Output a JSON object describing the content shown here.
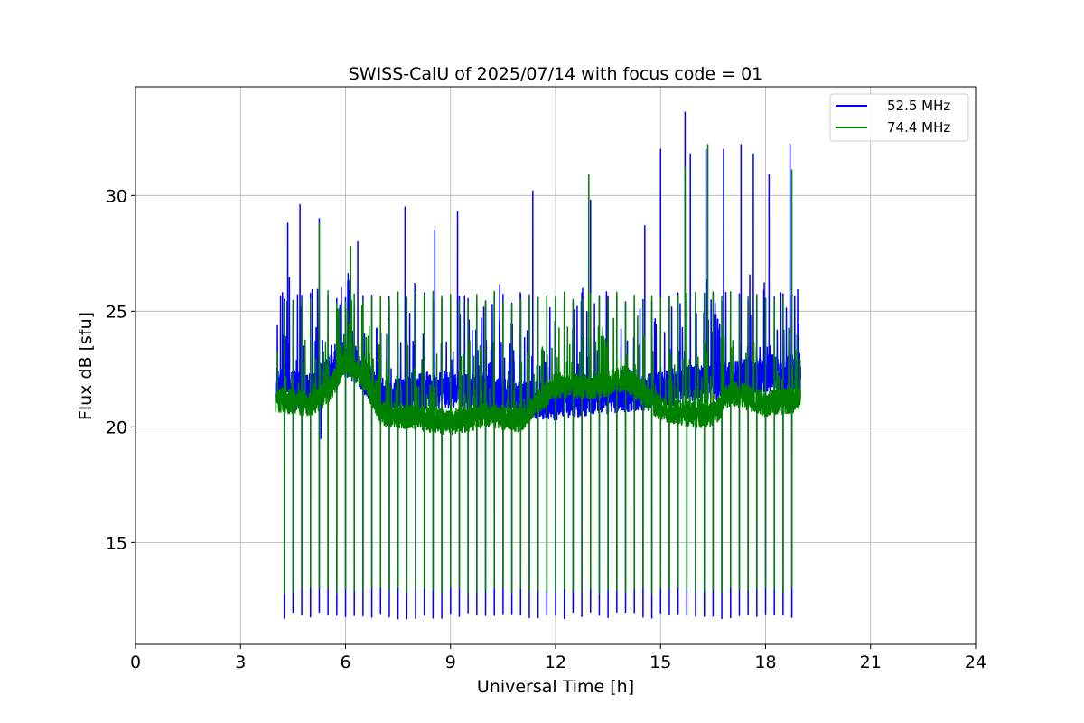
{
  "chart_data": {
    "type": "line",
    "title": "SWISS-CalU of 2025/07/14 with focus code = 01",
    "xlabel": "Universal Time [h]",
    "ylabel": "Flux dB [sfu]",
    "xlim": [
      0,
      24
    ],
    "ylim": [
      10.6,
      34.7
    ],
    "xticks": [
      0,
      3,
      6,
      9,
      12,
      15,
      18,
      21,
      24
    ],
    "yticks": [
      15,
      20,
      25,
      30
    ],
    "grid": true,
    "legend_position": "top-right",
    "data_start_hour": 4.0,
    "data_end_hour": 19.0,
    "calibration_dips_hours": [
      4.0,
      4.25,
      4.5,
      4.75,
      5.0,
      5.25,
      5.5,
      5.75,
      6.0,
      6.25,
      6.5,
      6.75,
      7.0,
      7.25,
      7.5,
      7.75,
      8.0,
      8.25,
      8.5,
      8.75,
      9.0,
      9.25,
      9.5,
      9.75,
      10.0,
      10.25,
      10.5,
      10.75,
      11.0,
      11.25,
      11.5,
      11.75,
      12.0,
      12.25,
      12.5,
      12.75,
      13.0,
      13.25,
      13.5,
      13.75,
      14.0,
      14.25,
      14.5,
      14.75,
      15.0,
      15.25,
      15.5,
      15.75,
      16.0,
      16.25,
      16.5,
      16.75,
      17.0,
      17.25,
      17.5,
      17.75,
      18.0,
      18.25,
      18.5,
      18.75
    ],
    "series": [
      {
        "name": "52.5 MHz",
        "color": "#0000ff",
        "baseline_points": [
          [
            4.0,
            21.8
          ],
          [
            5.0,
            21.5
          ],
          [
            5.5,
            22.2
          ],
          [
            6.0,
            23.0
          ],
          [
            6.5,
            22.3
          ],
          [
            7.0,
            21.2
          ],
          [
            8.0,
            21.5
          ],
          [
            9.0,
            21.6
          ],
          [
            10.0,
            21.4
          ],
          [
            11.0,
            21.2
          ],
          [
            12.0,
            21.1
          ],
          [
            13.0,
            21.3
          ],
          [
            14.0,
            21.4
          ],
          [
            15.0,
            21.6
          ],
          [
            16.0,
            21.9
          ],
          [
            17.0,
            22.0
          ],
          [
            18.0,
            22.3
          ],
          [
            19.0,
            22.4
          ]
        ],
        "calibration_min": 11.7,
        "calibration_high": 25.8,
        "spike_points": [
          [
            4.2,
            25.8
          ],
          [
            4.35,
            28.8
          ],
          [
            4.7,
            29.6
          ],
          [
            5.25,
            29.0
          ],
          [
            5.3,
            19.5
          ],
          [
            6.35,
            28.0
          ],
          [
            7.7,
            29.5
          ],
          [
            8.55,
            28.5
          ],
          [
            9.2,
            29.3
          ],
          [
            11.35,
            30.2
          ],
          [
            13.0,
            29.8
          ],
          [
            14.55,
            28.7
          ],
          [
            15.0,
            32.0
          ],
          [
            15.7,
            33.6
          ],
          [
            15.85,
            31.8
          ],
          [
            16.3,
            32.0
          ],
          [
            16.8,
            32.0
          ],
          [
            17.3,
            32.2
          ],
          [
            17.65,
            31.8
          ],
          [
            18.1,
            30.9
          ],
          [
            18.7,
            32.2
          ]
        ]
      },
      {
        "name": "74.4 MHz",
        "color": "#008000",
        "baseline_points": [
          [
            4.0,
            21.2
          ],
          [
            5.0,
            21.0
          ],
          [
            5.5,
            21.5
          ],
          [
            6.0,
            22.8
          ],
          [
            6.5,
            22.2
          ],
          [
            7.0,
            20.6
          ],
          [
            8.0,
            20.4
          ],
          [
            9.0,
            20.2
          ],
          [
            10.0,
            20.5
          ],
          [
            11.0,
            20.3
          ],
          [
            12.0,
            21.8
          ],
          [
            13.0,
            21.7
          ],
          [
            14.0,
            22.1
          ],
          [
            15.0,
            20.8
          ],
          [
            16.0,
            20.5
          ],
          [
            16.5,
            20.5
          ],
          [
            17.0,
            21.5
          ],
          [
            18.0,
            21.0
          ],
          [
            19.0,
            21.2
          ]
        ],
        "calibration_min": 12.8,
        "calibration_high": 25.9,
        "spike_points": [
          [
            5.25,
            28.8
          ],
          [
            6.15,
            27.8
          ],
          [
            12.95,
            30.9
          ],
          [
            15.7,
            31.2
          ],
          [
            16.35,
            32.2
          ],
          [
            18.75,
            31.1
          ]
        ]
      }
    ]
  }
}
